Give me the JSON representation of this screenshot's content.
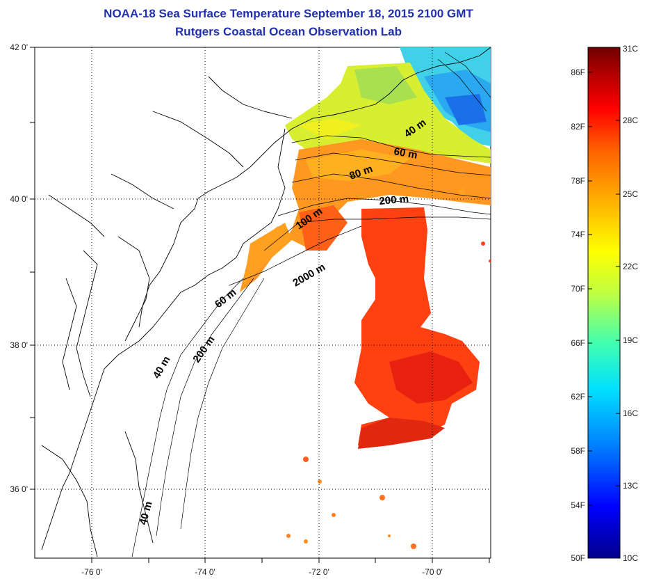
{
  "title": {
    "line1": "NOAA-18 Sea Surface Temperature September 18, 2015 2100 GMT",
    "line2": "Rutgers Coastal Ocean Observation Lab"
  },
  "map": {
    "x_ticks": [
      "-76 0'",
      "-74 0'",
      "-72 0'",
      "-70 0'"
    ],
    "y_ticks": [
      "42 0'",
      "40 0'",
      "38 0'",
      "36 0'"
    ],
    "contour_labels": [
      "40 m",
      "60 m",
      "80 m",
      "200 m",
      "100 m",
      "2000 m",
      "60 m",
      "40 m",
      "200 m",
      "40 m"
    ]
  },
  "colorbar": {
    "fahrenheit": [
      "86F",
      "82F",
      "78F",
      "74F",
      "70F",
      "66F",
      "62F",
      "58F",
      "54F",
      "50F"
    ],
    "celsius": [
      "31C",
      "28C",
      "25C",
      "22C",
      "19C",
      "16C",
      "13C",
      "10C"
    ],
    "colors": [
      "#00008b",
      "#0000ff",
      "#0080ff",
      "#00e0ff",
      "#40ffb0",
      "#c0ff40",
      "#ffff00",
      "#ffb000",
      "#ff6000",
      "#ff0000",
      "#b00000",
      "#700000"
    ]
  }
}
